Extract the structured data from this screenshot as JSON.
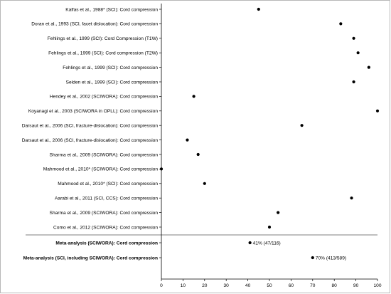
{
  "chart_data": {
    "type": "scatter",
    "title": "",
    "xlabel": "",
    "ylabel": "",
    "xlim": [
      0,
      100
    ],
    "xticks": [
      0,
      10,
      20,
      30,
      40,
      50,
      60,
      70,
      80,
      90,
      100
    ],
    "grid": false,
    "marker_color": "#000000",
    "rows": [
      {
        "label": "Kalfas et al., 1988* (SCI): Cord compression",
        "value": 45,
        "bold": false
      },
      {
        "label": "Doran et al., 1993 (SCI, facet dislocation): Cord compression",
        "value": 83,
        "bold": false
      },
      {
        "label": "Fehlings et al., 1999 (SCI): Cord Compression (T1W)",
        "value": 89,
        "bold": false
      },
      {
        "label": "Fehlings et al., 1999 (SCI): Cord compression (T2W)",
        "value": 91,
        "bold": false
      },
      {
        "label": "Fehlings et al., 1999 (SCI): Cord compression",
        "value": 96,
        "bold": false
      },
      {
        "label": "Selden et al., 1999 (SCI): Cord compression",
        "value": 89,
        "bold": false
      },
      {
        "label": "Hendey et al., 2002 (SCIWORA): Cord compression",
        "value": 15,
        "bold": false
      },
      {
        "label": "Koyanagi et al., 2003 (SCIWORA in OPLL): Cord compression",
        "value": 100,
        "bold": false
      },
      {
        "label": "Darsaut et al., 2006 (SCI, fracture-dislocation): Cord compression",
        "value": 65,
        "bold": false
      },
      {
        "label": "Darsaut et al., 2006 (SCI, fracture-dislocation): Cord compression",
        "value": 12,
        "bold": false
      },
      {
        "label": "Sharma et al., 2009 (SCIWORA): Cord compression",
        "value": 17,
        "bold": false
      },
      {
        "label": "Mahmood et al., 2010* (SCIWORA): Cord compression",
        "value": 0,
        "bold": false
      },
      {
        "label": "Mahmood et al., 2010* (SCI): Cord compression",
        "value": 20,
        "bold": false
      },
      {
        "label": "Aarabi et al., 2011 (SCI, CCS): Cord compression",
        "value": 88,
        "bold": false
      },
      {
        "label": "Sharma et al., 2009 (SCIWORA): Cord compression",
        "value": 54,
        "bold": false
      },
      {
        "label": "Como et al., 2012 (SCIWORA): Cord compression",
        "value": 50,
        "bold": false
      },
      {
        "label": "Meta-analysis (SCIWORA): Cord compression",
        "value": 41,
        "bold": true,
        "annotation": "41% (47/116)"
      },
      {
        "label": "Meta-analysis (SCI, including SCIWORA): Cord compression",
        "value": 70,
        "bold": true,
        "annotation": "70% (413/589)"
      }
    ]
  }
}
